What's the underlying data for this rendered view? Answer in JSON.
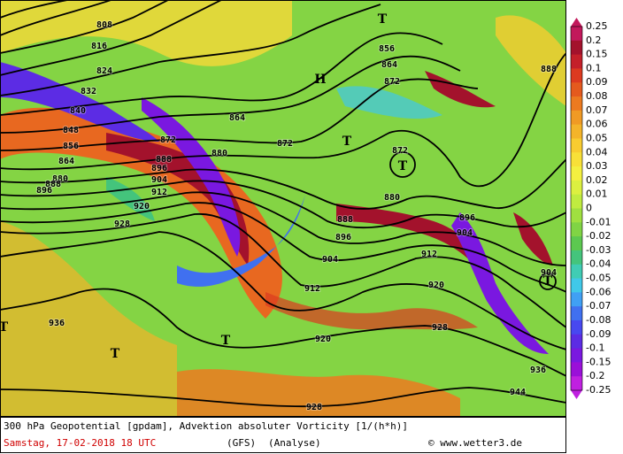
{
  "map": {
    "legend": {
      "labels": [
        "0.25",
        "0.2",
        "0.15",
        "0.1",
        "0.09",
        "0.08",
        "0.07",
        "0.06",
        "0.05",
        "0.04",
        "0.03",
        "0.02",
        "0.01",
        "0",
        "-0.01",
        "-0.02",
        "-0.03",
        "-0.04",
        "-0.05",
        "-0.06",
        "-0.07",
        "-0.08",
        "-0.09",
        "-0.1",
        "-0.15",
        "-0.2",
        "-0.25"
      ],
      "colors": [
        "#c2185b",
        "#a3122c",
        "#c4202a",
        "#dc3a20",
        "#e45a1e",
        "#ec7a20",
        "#f09a24",
        "#f4b42a",
        "#f8cc30",
        "#f8e038",
        "#f4f040",
        "#dcf040",
        "#c0ec40",
        "#a0e040",
        "#80d444",
        "#5cc850",
        "#44c47c",
        "#40ccb4",
        "#40c8e8",
        "#40a0f4",
        "#4070f0",
        "#4848f0",
        "#5c2ce4",
        "#7a18e0",
        "#9a10d8",
        "#c020e0"
      ]
    },
    "centers": [
      "H",
      "T",
      "T",
      "T",
      "T",
      "T",
      "T",
      "T"
    ],
    "contour_labels": [
      808,
      816,
      824,
      832,
      840,
      848,
      856,
      864,
      872,
      872,
      864,
      880,
      888,
      896,
      904,
      912,
      920,
      928,
      880,
      888,
      896,
      856,
      864,
      872,
      872,
      880,
      888,
      896,
      904,
      912,
      912,
      896,
      904,
      920,
      928,
      920,
      928,
      936,
      936,
      944,
      888,
      904
    ],
    "footer": {
      "title": "300 hPa Geopotential [gpdam], Advektion absoluter Vorticity [1/(h*h)]",
      "date": "Samstag, 17-02-2018  18 UTC",
      "model": "(GFS)",
      "run": "(Analyse)",
      "source": "© www.wetter3.de"
    }
  }
}
